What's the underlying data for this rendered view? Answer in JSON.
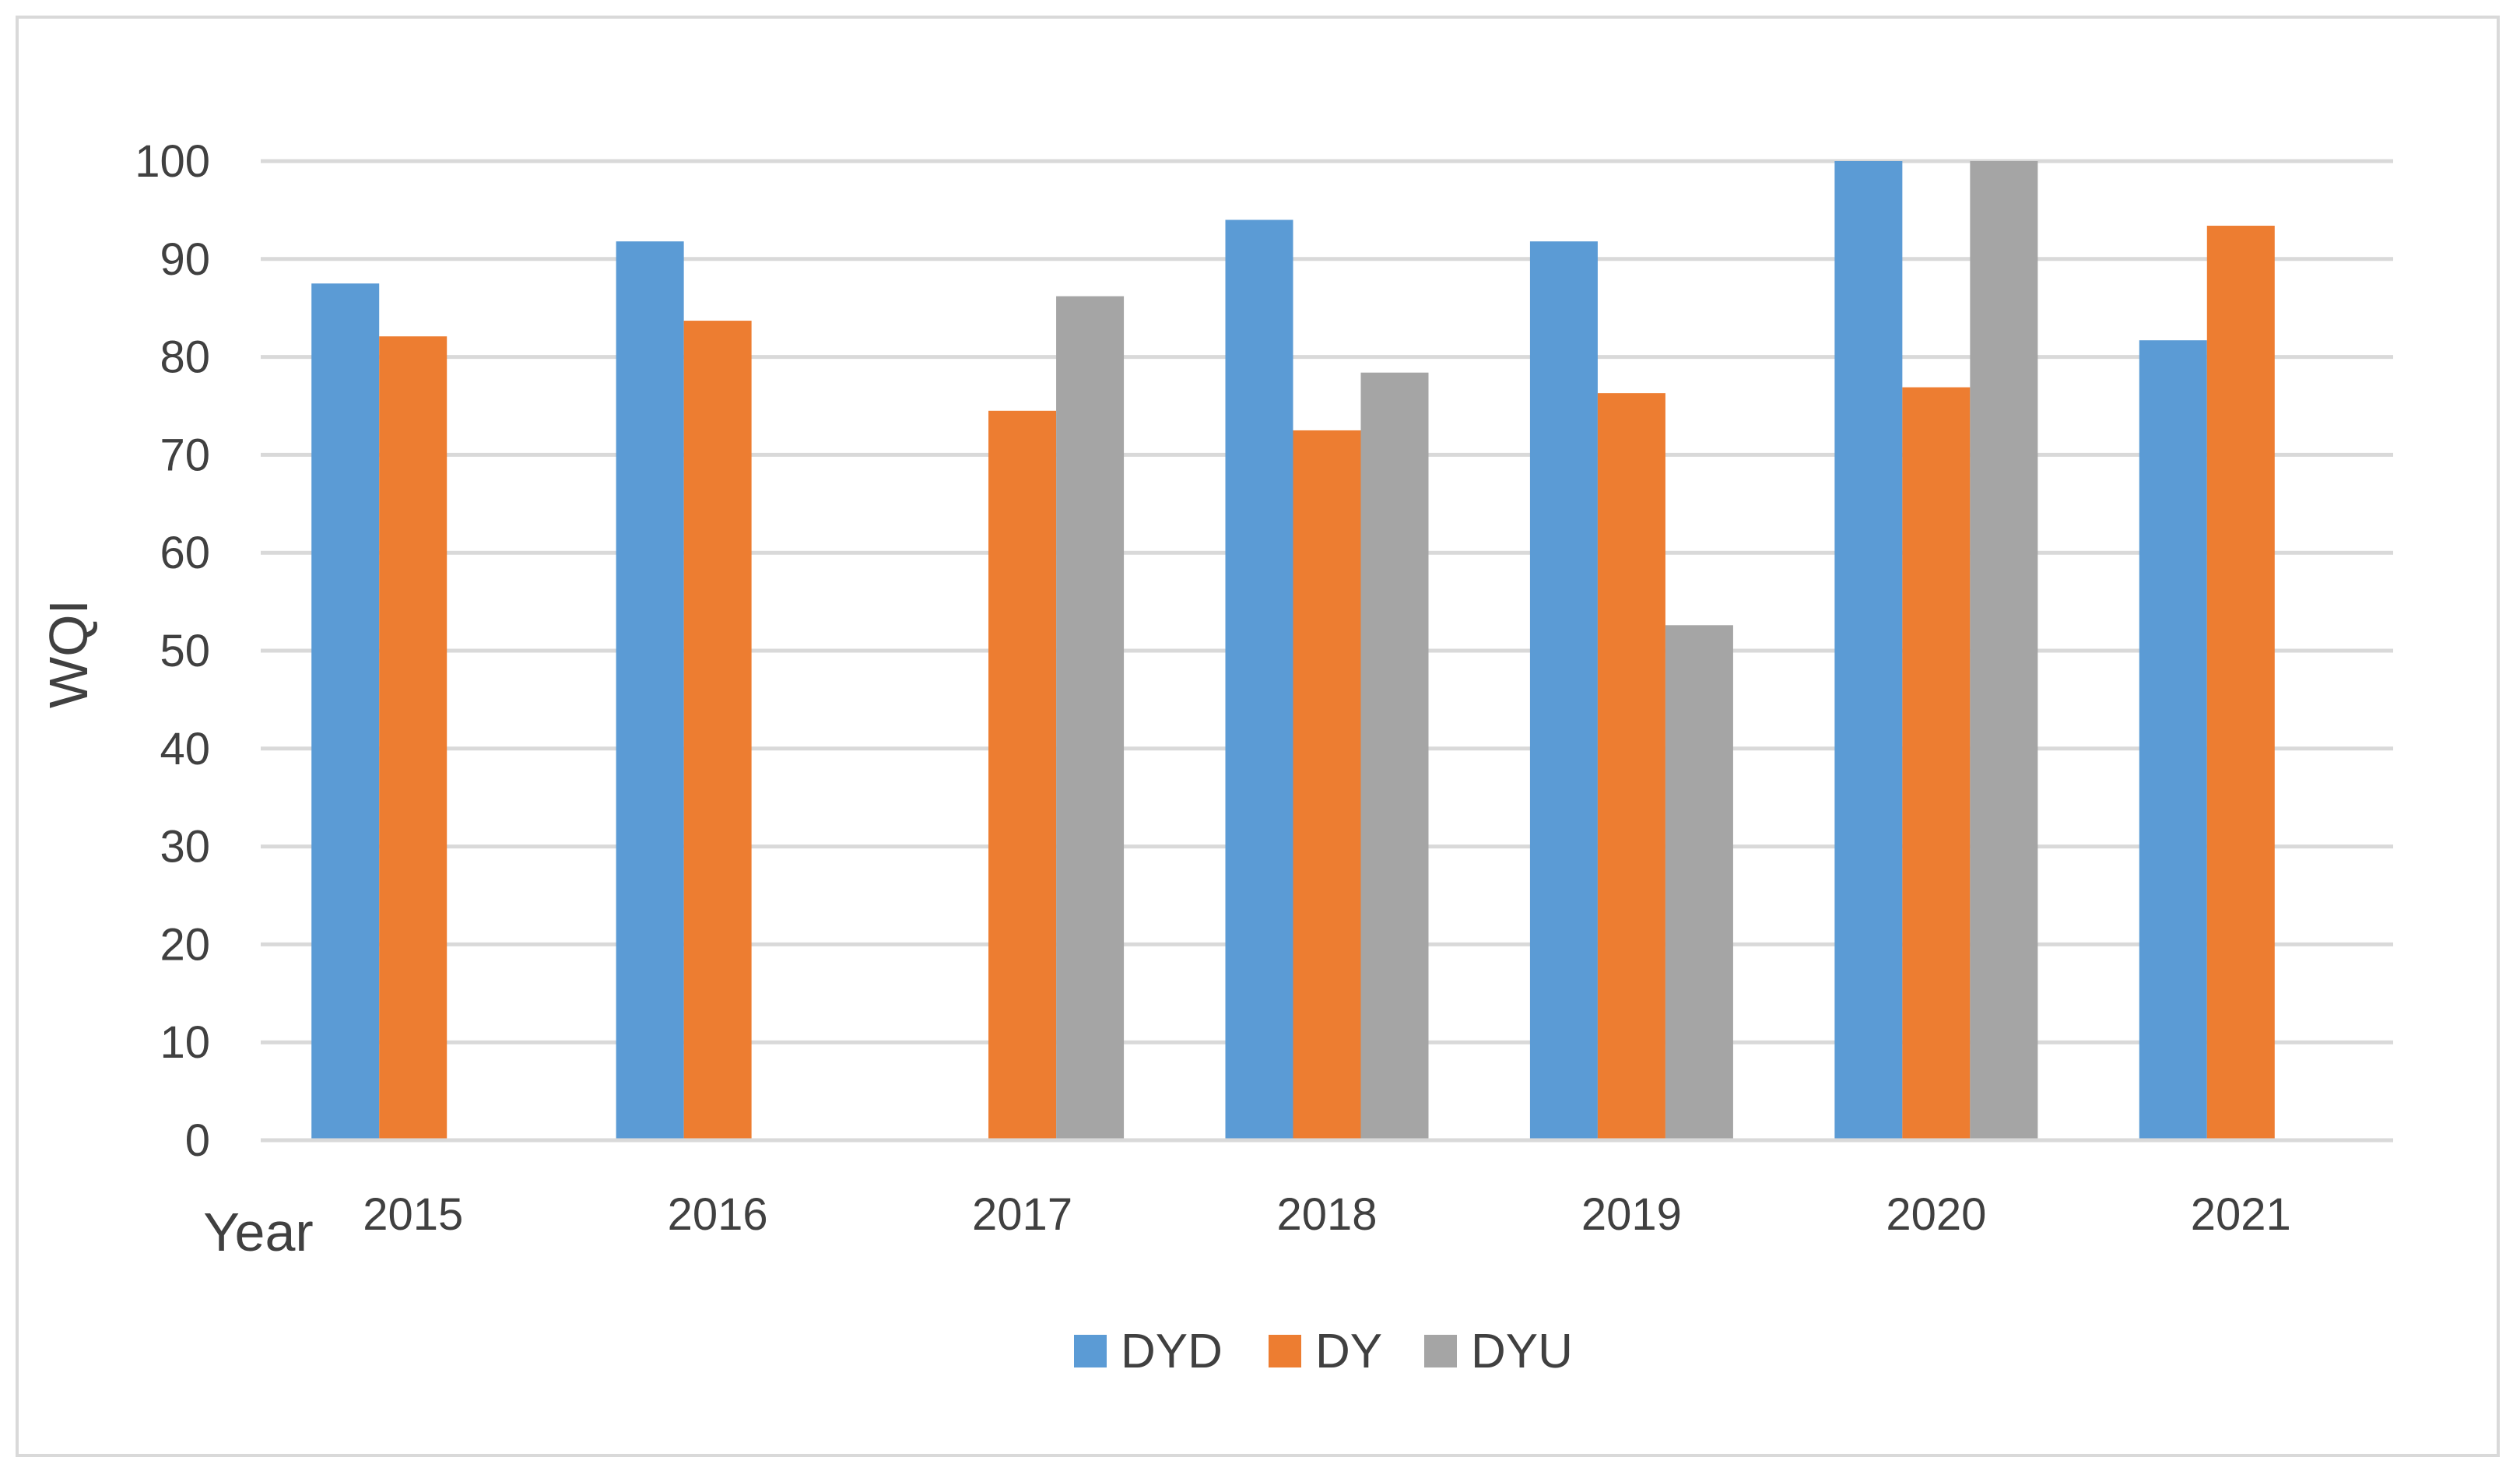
{
  "chart_data": {
    "type": "bar",
    "title": "",
    "xlabel": "Year",
    "ylabel": "WQI",
    "ylim": [
      0,
      100
    ],
    "yticks": [
      0,
      10,
      20,
      30,
      40,
      50,
      60,
      70,
      80,
      90,
      100
    ],
    "grid": true,
    "legend": "bottom",
    "categories": [
      "2015",
      "2016",
      "2017",
      "2018",
      "2019",
      "2020",
      "2021"
    ],
    "series": [
      {
        "name": "DYD",
        "color": "#5b9bd5",
        "values": [
          87.5,
          91.8,
          null,
          94.0,
          91.8,
          100,
          81.7
        ]
      },
      {
        "name": "DY",
        "color": "#ed7d31",
        "values": [
          82.1,
          83.7,
          74.5,
          72.5,
          76.3,
          76.9,
          93.4
        ]
      },
      {
        "name": "DYU",
        "color": "#a5a5a5",
        "values": [
          null,
          null,
          86.2,
          78.4,
          52.6,
          100,
          null
        ]
      }
    ]
  }
}
